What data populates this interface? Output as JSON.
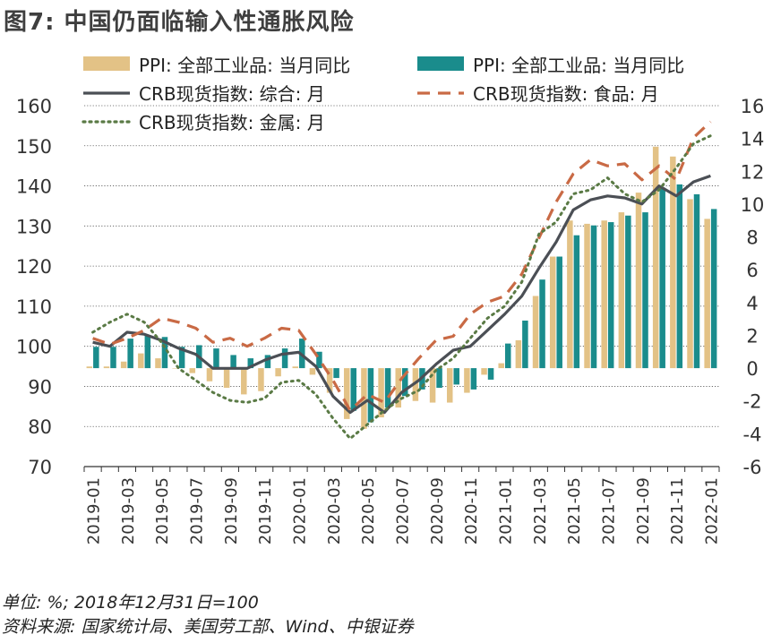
{
  "title": "图7: 中国仍面临输入性通胀风险",
  "footer": {
    "unit": "单位: %; 2018年12月31日=100",
    "source": "资料来源: 国家统计局、美国劳工部、Wind、中银证券"
  },
  "colors": {
    "ppi_all": "#e3c286",
    "ppi_ind": "#1a8c8c",
    "crb_composite": "#4b4f55",
    "crb_food": "#c96a45",
    "crb_metal": "#5a7a45",
    "grid": "#555555"
  },
  "chart_data": {
    "type": "bar-line-combo",
    "categories": [
      "2019-01",
      "2019-02",
      "2019-03",
      "2019-04",
      "2019-05",
      "2019-06",
      "2019-07",
      "2019-08",
      "2019-09",
      "2019-10",
      "2019-11",
      "2019-12",
      "2020-01",
      "2020-02",
      "2020-03",
      "2020-04",
      "2020-05",
      "2020-06",
      "2020-07",
      "2020-08",
      "2020-09",
      "2020-10",
      "2020-11",
      "2020-12",
      "2021-01",
      "2021-02",
      "2021-03",
      "2021-04",
      "2021-05",
      "2021-06",
      "2021-07",
      "2021-08",
      "2021-09",
      "2021-10",
      "2021-11",
      "2021-12",
      "2022-01"
    ],
    "x_tick_labels": [
      "2019-01",
      "2019-03",
      "2019-05",
      "2019-07",
      "2019-09",
      "2019-11",
      "2020-01",
      "2020-03",
      "2020-05",
      "2020-07",
      "2020-09",
      "2020-11",
      "2021-01",
      "2021-03",
      "2021-05",
      "2021-07",
      "2021-09",
      "2021-11",
      "2022-01"
    ],
    "left_axis": {
      "ylim": [
        70,
        160
      ],
      "ticks": [
        70,
        80,
        90,
        100,
        110,
        120,
        130,
        140,
        150,
        160
      ]
    },
    "right_axis": {
      "ylim": [
        -6,
        16
      ],
      "ticks": [
        -6,
        -4,
        -2,
        0,
        2,
        4,
        6,
        8,
        10,
        12,
        14,
        16
      ]
    },
    "series": [
      {
        "name": "PPI: 全部工业品: 当月同比",
        "type": "bar",
        "axis": "right",
        "color_key": "ppi_all",
        "values": [
          0.1,
          0.1,
          0.4,
          0.9,
          0.6,
          0.0,
          -0.3,
          -0.8,
          -1.2,
          -1.6,
          -1.4,
          -0.5,
          0.1,
          -0.4,
          -1.5,
          -3.1,
          -3.7,
          -3.0,
          -2.4,
          -2.0,
          -2.1,
          -2.1,
          -1.5,
          -0.4,
          0.3,
          1.7,
          4.4,
          6.8,
          9.0,
          8.8,
          9.0,
          9.5,
          10.7,
          13.5,
          12.9,
          10.3,
          9.1
        ]
      },
      {
        "name": "PPI: 全部工业品: 当月同比",
        "type": "bar",
        "axis": "right",
        "color_key": "ppi_ind",
        "values": [
          1.3,
          1.3,
          1.8,
          2.0,
          1.9,
          1.3,
          1.4,
          1.2,
          0.8,
          0.6,
          0.8,
          1.2,
          1.8,
          1.0,
          -0.6,
          -2.6,
          -3.3,
          -2.4,
          -1.7,
          -1.3,
          -1.2,
          -1.0,
          -1.3,
          -0.7,
          1.5,
          2.9,
          5.4,
          6.8,
          8.1,
          8.7,
          8.9,
          9.3,
          9.5,
          11.0,
          11.2,
          10.6,
          9.7
        ]
      },
      {
        "name": "CRB现货指数: 综合: 月",
        "type": "line",
        "axis": "left",
        "color_key": "crb_composite",
        "dash": "solid",
        "values": [
          101,
          100,
          103.5,
          103,
          101.5,
          99.5,
          98,
          94.5,
          94.5,
          94.5,
          96.5,
          98,
          98.5,
          95,
          87.5,
          83.5,
          86.5,
          83.5,
          88.5,
          91.5,
          95.5,
          99,
          100,
          104,
          108,
          112.5,
          119.5,
          126,
          134,
          136.5,
          137.5,
          137,
          135.5,
          140,
          137.5,
          141,
          142.5
        ]
      },
      {
        "name": "CRB现货指数: 食品: 月",
        "type": "line",
        "axis": "left",
        "color_key": "crb_food",
        "dash": "dashed",
        "values": [
          102,
          100.5,
          102,
          104,
          107,
          106,
          104.5,
          101,
          102,
          100,
          102,
          104.5,
          104,
          98,
          91.5,
          84,
          88,
          86,
          92,
          97,
          101.5,
          102.5,
          108,
          111,
          112.5,
          118,
          127,
          136,
          143,
          146.5,
          145,
          145.5,
          141.5,
          145,
          141.5,
          152,
          156
        ]
      },
      {
        "name": "CRB现货指数: 金属: 月",
        "type": "line",
        "axis": "left",
        "color_key": "crb_metal",
        "dash": "dotted",
        "values": [
          103.5,
          106,
          108,
          106,
          101,
          94.5,
          91.5,
          88.5,
          86.5,
          86,
          87,
          91,
          91.5,
          88,
          82,
          77,
          80.5,
          84,
          87,
          89,
          94,
          97,
          102,
          107,
          110,
          116,
          128,
          131,
          138,
          139,
          142,
          138,
          136,
          139,
          144.5,
          150.5,
          152.5
        ]
      }
    ],
    "legend": [
      {
        "label": "PPI: 全部工业品: 当月同比",
        "symbol": "bar",
        "color_key": "ppi_all"
      },
      {
        "label": "PPI: 全部工业品: 当月同比",
        "symbol": "bar",
        "color_key": "ppi_ind"
      },
      {
        "label": "CRB现货指数: 综合: 月",
        "symbol": "solid",
        "color_key": "crb_composite"
      },
      {
        "label": "CRB现货指数: 食品: 月",
        "symbol": "dashed",
        "color_key": "crb_food"
      },
      {
        "label": "CRB现货指数: 金属: 月",
        "symbol": "dotted",
        "color_key": "crb_metal"
      }
    ]
  }
}
